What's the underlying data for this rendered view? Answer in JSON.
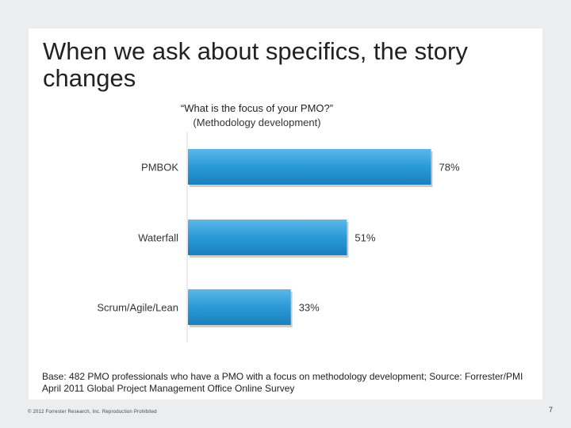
{
  "slide": {
    "title": "When we ask about specifics, the story changes",
    "question": "“What is the focus of your PMO?”",
    "question_sub": "(Methodology development)",
    "base_note": "Base: 482 PMO professionals who have a PMO with a focus on methodology development; Source: Forrester/PMI April 2011 Global Project Management Office Online Survey",
    "copyright": "© 2012 Forrester Research, Inc. Reproduction Prohibited",
    "page_number": "7"
  },
  "chart_data": {
    "type": "bar",
    "orientation": "horizontal",
    "categories": [
      "PMBOK",
      "Waterfall",
      "Scrum/Agile/Lean"
    ],
    "values": [
      78,
      51,
      33
    ],
    "value_labels": [
      "78%",
      "51%",
      "33%"
    ],
    "xlim": [
      0,
      100
    ],
    "bar_color": "#2a9ad6",
    "grid": false
  }
}
